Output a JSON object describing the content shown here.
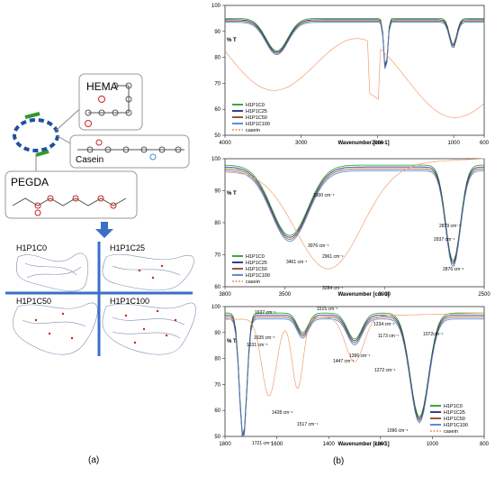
{
  "panel_labels": {
    "a": "(a)",
    "b": "(b)"
  },
  "schematic": {
    "hema_label": "HEMA",
    "casein_label": "Casein",
    "pegda_label": "PEGDA",
    "networks": [
      "H1P1C0",
      "H1P1C25",
      "H1P1C50",
      "H1P1C100"
    ]
  },
  "colors": {
    "H1P1C0": "#2e9a2e",
    "H1P1C25": "#1f2a7a",
    "H1P1C50": "#8a4a1a",
    "H1P1C100": "#4a7fd8",
    "casein": "#f0a070",
    "arrow": "#3a6fc8"
  },
  "chart_data": [
    {
      "type": "line",
      "ylabel": "% T",
      "xlabel": "Wavenumber [cm-1]",
      "xlim": [
        4000,
        600
      ],
      "ylim": [
        50,
        100
      ],
      "xticks": [
        4000,
        3000,
        2000,
        1000,
        600
      ],
      "yticks": [
        50,
        60,
        70,
        80,
        90,
        100
      ],
      "legend": [
        "H1P1C0",
        "H1P1C25",
        "H1P1C50",
        "H1P1C100",
        "casein"
      ],
      "legend_position": "bottom-left",
      "annotations": []
    },
    {
      "type": "line",
      "ylabel": "% T",
      "xlabel": "Wavenumber [cm-1]",
      "xlim": [
        3800,
        2500
      ],
      "ylim": [
        60,
        100
      ],
      "xticks": [
        3800,
        3500,
        3000,
        2500
      ],
      "yticks": [
        60,
        70,
        80,
        90,
        100
      ],
      "legend": [
        "H1P1C0",
        "H1P1C25",
        "H1P1C50",
        "H1P1C100",
        "casein"
      ],
      "legend_position": "bottom-left",
      "annotations": [
        "3300 cm⁻¹",
        "3461 cm⁻¹",
        "3284 cm⁻¹",
        "3076 cm⁻¹",
        "2961 cm⁻¹",
        "2879 cm⁻¹",
        "2937 cm⁻¹",
        "2876 cm⁻¹"
      ]
    },
    {
      "type": "line",
      "ylabel": "% T",
      "xlabel": "Wavenumber [cm-1]",
      "xlim": [
        1800,
        800
      ],
      "ylim": [
        50,
        100
      ],
      "xticks": [
        1800,
        1600,
        1400,
        1200,
        1000,
        800
      ],
      "yticks": [
        50,
        60,
        70,
        80,
        90,
        100
      ],
      "legend": [
        "H1P1C0",
        "H1P1C25",
        "H1P1C50",
        "H1P1C100",
        "casein"
      ],
      "legend_position": "bottom-right",
      "annotations": [
        "1637 cm⁻¹",
        "1515 cm⁻¹",
        "1635 cm⁻¹",
        "1631 cm⁻¹",
        "1234 cm⁻¹",
        "1173 cm⁻¹",
        "1072cm⁻¹",
        "1396 cm⁻¹",
        "1447 cm⁻¹",
        "1272 cm⁻¹",
        "1428 cm⁻¹",
        "1517 cm⁻¹",
        "1721 cm⁻¹",
        "1096 cm⁻¹"
      ]
    }
  ]
}
